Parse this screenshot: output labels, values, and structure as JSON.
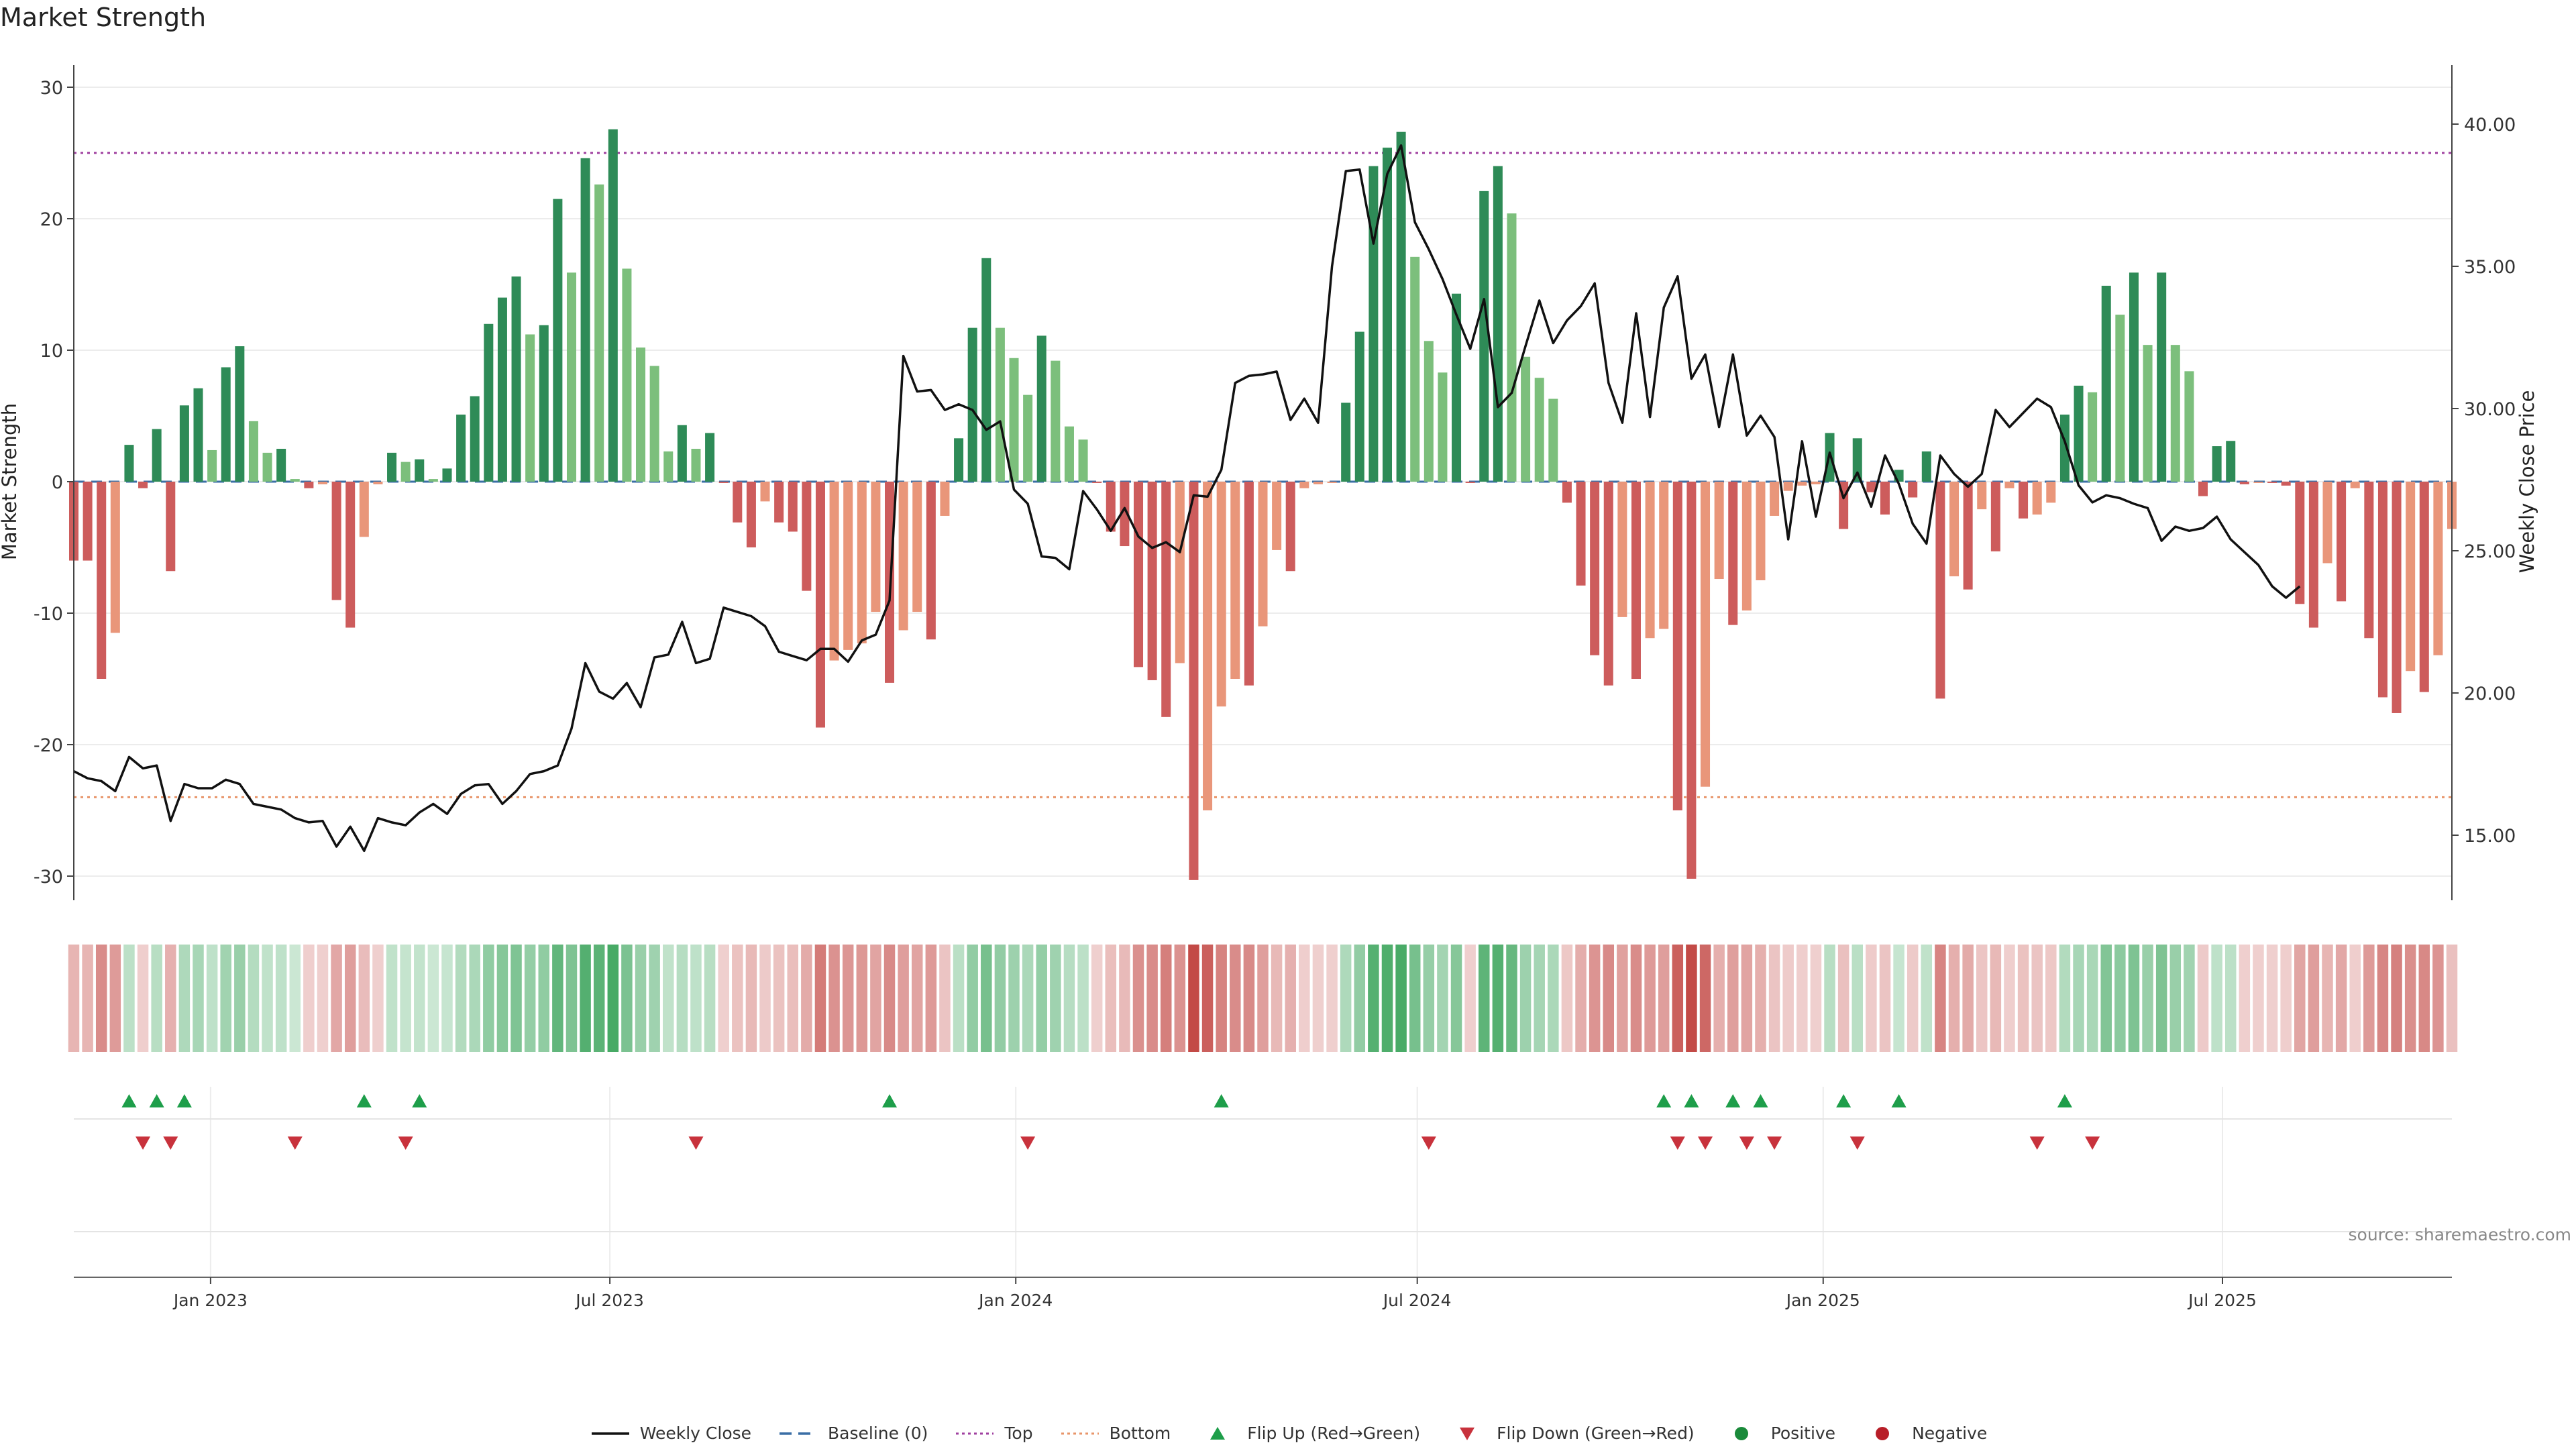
{
  "chart_data": {
    "type": "bar",
    "title": "Market Strength",
    "ylabel": "Market Strength",
    "y2label": "Weekly Close Price",
    "ylim": [
      -32,
      32
    ],
    "y2lim": [
      13.25,
      41.75
    ],
    "yticks": [
      -30,
      -20,
      -10,
      0,
      10,
      20,
      30
    ],
    "y2ticks": [
      "15.00",
      "20.00",
      "25.00",
      "30.00",
      "35.00",
      "40.00"
    ],
    "x_start": "2022-10-31",
    "x_end": "2025-10-13",
    "xticks": [
      {
        "date": "2023-01-01",
        "label": "Jan 2023"
      },
      {
        "date": "2023-07-01",
        "label": "Jul 2023"
      },
      {
        "date": "2024-01-01",
        "label": "Jan 2024"
      },
      {
        "date": "2024-07-01",
        "label": "Jul 2024"
      },
      {
        "date": "2025-01-01",
        "label": "Jan 2025"
      },
      {
        "date": "2025-07-01",
        "label": "Jul 2025"
      }
    ],
    "top_line": 25,
    "bottom_line": -24,
    "series": [
      {
        "name": "Market Strength",
        "type": "bar",
        "values": [
          -6,
          -6,
          -15,
          -11.5,
          2.8,
          -0.5,
          4,
          -6.8,
          5.8,
          7.1,
          2.4,
          8.7,
          10.3,
          4.6,
          2.2,
          2.5,
          0.2,
          -0.5,
          -0.2,
          -9,
          -11.1,
          -4.2,
          -0.2,
          2.2,
          1.5,
          1.7,
          0.2,
          1,
          5.1,
          6.5,
          12,
          14,
          15.6,
          11.2,
          11.9,
          21.5,
          15.9,
          24.6,
          22.6,
          26.8,
          16.2,
          10.2,
          8.8,
          2.3,
          4.3,
          2.5,
          3.7,
          -0.1,
          -3.1,
          -5,
          -1.5,
          -3.1,
          -3.8,
          -8.3,
          -18.7,
          -13.6,
          -12.8,
          -12.3,
          -9.9,
          -15.3,
          -11.3,
          -9.9,
          -12,
          -2.6,
          3.3,
          11.7,
          17,
          11.7,
          9.4,
          6.6,
          11.1,
          9.2,
          4.2,
          3.2,
          -0.1,
          -3.8,
          -4.9,
          -14.1,
          -15.1,
          -17.9,
          -13.8,
          -30.3,
          -25,
          -17.1,
          -15,
          -15.5,
          -11,
          -5.2,
          -6.8,
          -0.5,
          -0.2,
          -0.1,
          6,
          11.4,
          24,
          25.4,
          26.6,
          17.1,
          10.7,
          8.3,
          14.3,
          -0.1,
          22.1,
          24,
          20.4,
          9.5,
          7.9,
          6.3,
          -1.6,
          -7.9,
          -13.2,
          -15.5,
          -10.3,
          -15,
          -11.9,
          -11.2,
          -25,
          -30.2,
          -23.2,
          -7.4,
          -10.9,
          -9.8,
          -7.5,
          -2.6,
          -0.7,
          -0.3,
          -0.2,
          3.7,
          -3.6,
          3.3,
          -0.8,
          -2.5,
          0.9,
          -1.2,
          2.3,
          -16.5,
          -7.2,
          -8.2,
          -2.1,
          -5.3,
          -0.5,
          -2.8,
          -2.5,
          -1.6,
          5.1,
          7.3,
          6.8,
          14.9,
          12.7,
          15.9,
          10.4,
          15.9,
          10.4,
          8.4,
          -1.1,
          2.7,
          3.1,
          -0.2,
          -0.1,
          -0.1,
          -0.3,
          -9.3,
          -11.1,
          -6.2,
          -9.1,
          -0.5,
          -11.9,
          -16.4,
          -17.6,
          -14.4,
          -16,
          -13.2,
          -3.6
        ]
      },
      {
        "name": "Weekly Close",
        "type": "line",
        "values": [
          17.25,
          17,
          16.9,
          16.55,
          17.75,
          17.35,
          17.45,
          15.5,
          16.8,
          16.65,
          16.65,
          16.95,
          16.8,
          16.1,
          16,
          15.9,
          15.6,
          15.45,
          15.5,
          14.6,
          15.3,
          14.45,
          15.6,
          15.45,
          15.35,
          15.8,
          16.1,
          15.75,
          16.45,
          16.75,
          16.8,
          16.1,
          16.55,
          17.15,
          17.25,
          17.45,
          18.75,
          21.05,
          20.05,
          19.8,
          20.35,
          19.5,
          21.25,
          21.35,
          22.5,
          21.05,
          21.2,
          23,
          22.85,
          22.7,
          22.35,
          21.45,
          21.3,
          21.15,
          21.55,
          21.55,
          21.1,
          21.85,
          22.05,
          23.25,
          31.85,
          30.6,
          30.65,
          29.95,
          30.15,
          29.95,
          29.25,
          29.55,
          27.15,
          26.65,
          24.8,
          24.75,
          24.35,
          27.1,
          26.45,
          25.7,
          26.5,
          25.5,
          25.1,
          25.3,
          24.95,
          26.95,
          26.9,
          27.85,
          30.9,
          31.15,
          31.2,
          31.3,
          29.6,
          30.35,
          29.5,
          35,
          38.35,
          38.4,
          35.8,
          38.25,
          39.25,
          36.55,
          35.6,
          34.55,
          33.3,
          32.1,
          33.85,
          30.05,
          30.55,
          32.2,
          33.8,
          32.3,
          33.1,
          33.6,
          34.4,
          30.9,
          29.5,
          33.35,
          29.7,
          33.55,
          34.65,
          31.05,
          31.9,
          29.35,
          31.9,
          29.05,
          29.75,
          29,
          25.4,
          28.85,
          26.2,
          28.45,
          26.85,
          27.75,
          26.55,
          28.35,
          27.35,
          25.95,
          25.25,
          28.35,
          27.7,
          27.25,
          27.7,
          29.95,
          29.35,
          29.85,
          30.35,
          30.05,
          28.85,
          27.3,
          26.7,
          26.95,
          26.85,
          26.65,
          26.5,
          25.35,
          25.85,
          25.7,
          25.8,
          26.2,
          25.4,
          24.95,
          24.5,
          23.75,
          23.35,
          23.75
        ]
      },
      {
        "name": "Flip Up (Red→Green)",
        "type": "marker",
        "indices": [
          4,
          6,
          8,
          21,
          25,
          59,
          83,
          115,
          117,
          120,
          122,
          128,
          132,
          144
        ]
      },
      {
        "name": "Flip Down (Green→Red)",
        "type": "marker",
        "indices": [
          5,
          7,
          16,
          24,
          45,
          69,
          98,
          116,
          118,
          121,
          123,
          129,
          142,
          146
        ]
      }
    ],
    "legend": [
      {
        "label": "Weekly Close",
        "symbol": "solid-line",
        "color": "#111111"
      },
      {
        "label": "Baseline (0)",
        "symbol": "dashed-line",
        "color": "#3a6ea5"
      },
      {
        "label": "Top",
        "symbol": "dotted-line",
        "color": "#a040a0"
      },
      {
        "label": "Bottom",
        "symbol": "dotted-line",
        "color": "#e8956a"
      },
      {
        "label": "Flip Up (Red→Green)",
        "symbol": "triangle-up",
        "color": "#1e9e4a"
      },
      {
        "label": "Flip Down (Green→Red)",
        "symbol": "triangle-down",
        "color": "#c8323c"
      },
      {
        "label": "Positive",
        "symbol": "circle",
        "color": "#1a8a3a"
      },
      {
        "label": "Negative",
        "symbol": "circle",
        "color": "#b81e28"
      }
    ],
    "legend_position": "bottom-center",
    "grid": true
  },
  "colors": {
    "pos_strong": "#2e8b57",
    "pos_weak": "#7cbf7c",
    "neg_strong": "#cd5c5c",
    "neg_weak": "#e9967a",
    "top_line": "#a040a0",
    "bottom_line": "#e8956a",
    "baseline": "#3a6ea5",
    "price_line": "#111111",
    "flip_up": "#1e9e4a",
    "flip_down": "#c8323c"
  },
  "source": "source: sharemaestro.com"
}
